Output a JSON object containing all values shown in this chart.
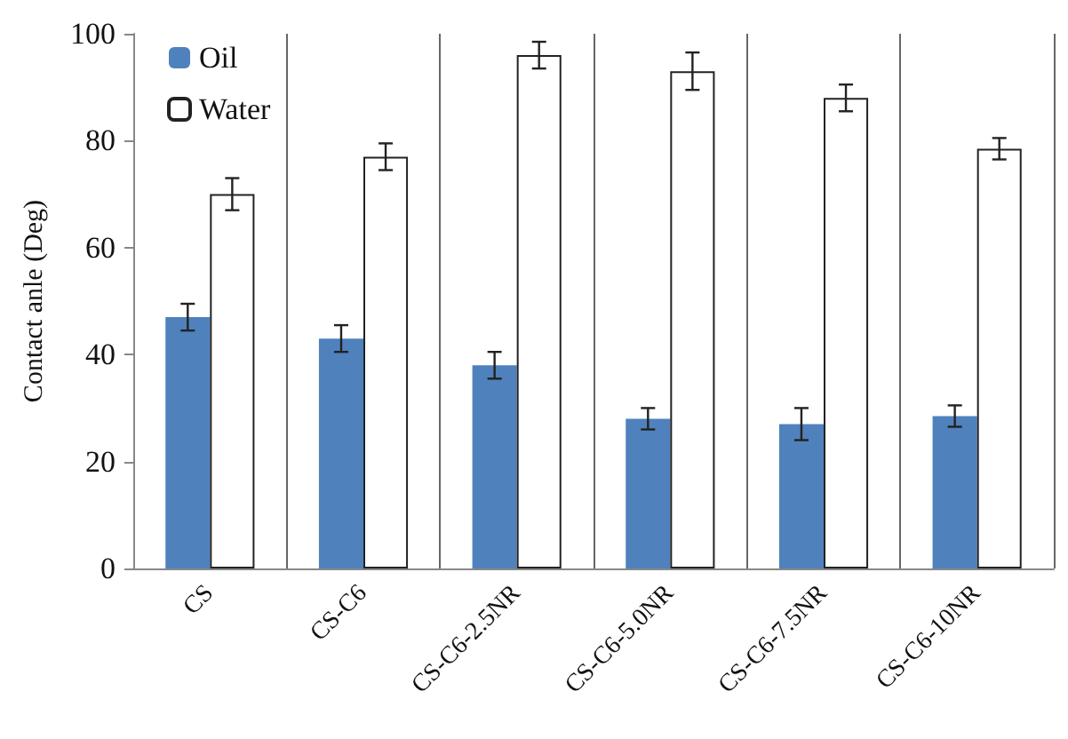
{
  "chart_data": {
    "type": "bar",
    "ylabel": "Contact anle (Deg)",
    "categories": [
      "CS",
      "CS-C6",
      "CS-C6-2.5NR",
      "CS-C6-5.0NR",
      "CS-C6-7.5NR",
      "CS-C6-10NR"
    ],
    "series": [
      {
        "name": "Oil",
        "color": "#4f81bd",
        "values": [
          47,
          43,
          38,
          28,
          27,
          28.5
        ],
        "errors": [
          2.5,
          2.5,
          2.5,
          2,
          3,
          2
        ]
      },
      {
        "name": "Water",
        "color": "#ffffff",
        "values": [
          70,
          77,
          96,
          93,
          88,
          78.5
        ],
        "errors": [
          3,
          2.5,
          2.5,
          3.5,
          2.5,
          2
        ]
      }
    ],
    "ylim": [
      0,
      100
    ],
    "yticks": [
      0,
      20,
      40,
      60,
      80,
      100
    ],
    "grid": "x",
    "legend": "top left"
  }
}
